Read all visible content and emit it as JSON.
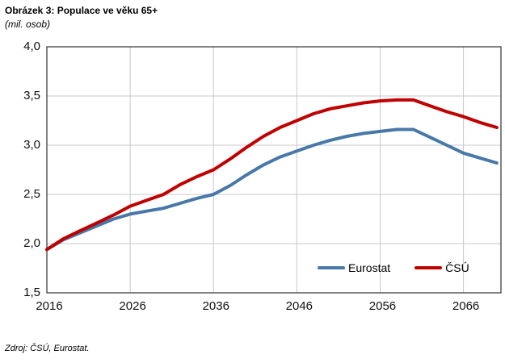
{
  "header": {
    "title": "Obrázek 3: Populace ve věku 65+",
    "subtitle": "(mil. osob)"
  },
  "footer": {
    "source": "Zdroj: ČSÚ, Eurostat."
  },
  "chart_data": {
    "type": "line",
    "title": "Obrázek 3: Populace ve věku 65+",
    "unit_label": "(mil. osob)",
    "x": [
      2016,
      2018,
      2020,
      2022,
      2024,
      2026,
      2028,
      2030,
      2032,
      2034,
      2036,
      2038,
      2040,
      2042,
      2044,
      2046,
      2048,
      2050,
      2052,
      2054,
      2056,
      2058,
      2060,
      2062,
      2064,
      2066,
      2068,
      2070
    ],
    "series": [
      {
        "name": "Eurostat",
        "color": "#4878A8",
        "values": [
          1.94,
          2.04,
          2.11,
          2.18,
          2.25,
          2.3,
          2.33,
          2.36,
          2.41,
          2.46,
          2.5,
          2.59,
          2.7,
          2.8,
          2.88,
          2.94,
          3.0,
          3.05,
          3.09,
          3.12,
          3.14,
          3.16,
          3.16,
          3.08,
          3.0,
          2.92,
          2.87,
          2.82
        ]
      },
      {
        "name": "ČSÚ",
        "color": "#C00000",
        "values": [
          1.94,
          2.05,
          2.13,
          2.21,
          2.29,
          2.38,
          2.44,
          2.5,
          2.6,
          2.68,
          2.75,
          2.86,
          2.98,
          3.09,
          3.18,
          3.25,
          3.32,
          3.37,
          3.4,
          3.43,
          3.45,
          3.46,
          3.46,
          3.4,
          3.34,
          3.29,
          3.23,
          3.18
        ]
      }
    ],
    "xlim": [
      2016,
      2070.5
    ],
    "ylim": [
      1.5,
      4.0
    ],
    "y_ticks": [
      4.0,
      3.5,
      3.0,
      2.5,
      2.0,
      1.5
    ],
    "y_tick_labels": [
      "4,0",
      "3,5",
      "3,0",
      "2,5",
      "2,0",
      "1,5"
    ],
    "x_ticks": [
      2016,
      2026,
      2036,
      2046,
      2056,
      2066
    ],
    "x_tick_labels": [
      "2016",
      "2026",
      "2036",
      "2046",
      "2056",
      "2066"
    ],
    "x_gridlines": [
      2026,
      2036,
      2046,
      2056,
      2066
    ],
    "grid": true,
    "legend_position": "inside-bottom-right",
    "gridline_color": "#C8C8C8",
    "border_color": "#3F3F3F",
    "line_width": 4
  }
}
